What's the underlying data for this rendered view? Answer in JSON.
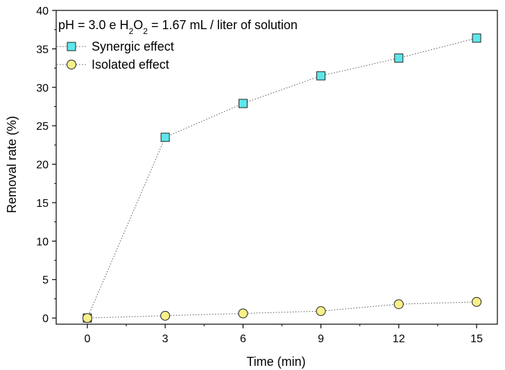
{
  "chart_data": {
    "type": "line",
    "title": "",
    "annotation": {
      "prefix": "pH = 3.0 e H",
      "sub1": "2",
      "mid": "O",
      "sub2": "2",
      "suffix": " = 1.67 mL / liter of solution"
    },
    "xlabel": "Time (min)",
    "ylabel": "Removal rate (%)",
    "xlim": [
      -1.2,
      15.8
    ],
    "ylim": [
      -0.8,
      40
    ],
    "xticks": [
      0,
      3,
      6,
      9,
      12,
      15
    ],
    "yticks": [
      0,
      5,
      10,
      15,
      20,
      25,
      30,
      35,
      40
    ],
    "x": [
      0,
      3,
      6,
      9,
      12,
      15
    ],
    "series": [
      {
        "name": "Synergic effect",
        "marker": "square",
        "color": "#5ee6ea",
        "values": [
          0,
          23.5,
          27.9,
          31.5,
          33.8,
          36.4
        ]
      },
      {
        "name": "Isolated effect",
        "marker": "circle",
        "color": "#f8f08a",
        "values": [
          0,
          0.3,
          0.6,
          0.9,
          1.8,
          2.1
        ]
      }
    ],
    "legend_position": "top-left",
    "grid": false
  }
}
